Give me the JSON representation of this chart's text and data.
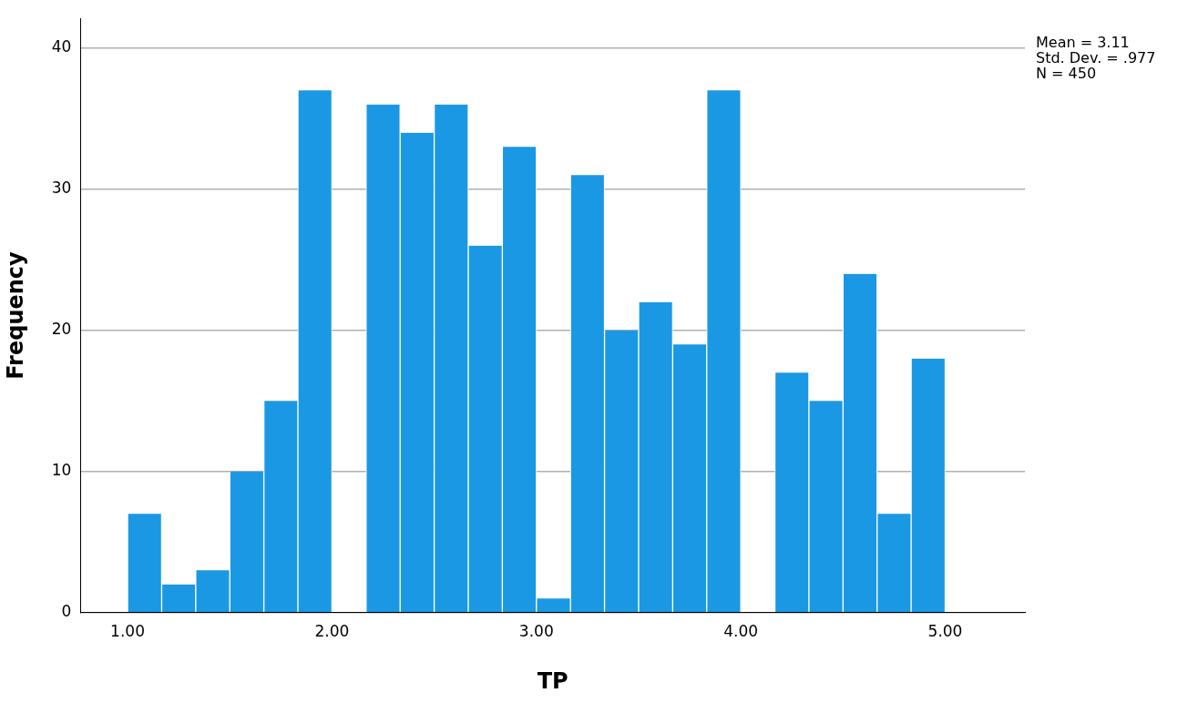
{
  "chart_data": {
    "type": "histogram",
    "xlabel": "TP",
    "ylabel": "Frequency",
    "bins": [
      1,
      1.1667,
      1.3333,
      1.5,
      1.6667,
      1.8333,
      2,
      2.1667,
      2.3333,
      2.5,
      2.6667,
      2.8333,
      3,
      3.1667,
      3.3333,
      3.5,
      3.6667,
      3.8333,
      4,
      4.1667,
      4.3333,
      4.5,
      4.6667,
      4.8333,
      5
    ],
    "values": [
      7,
      2,
      3,
      10,
      15,
      37,
      0,
      36,
      34,
      36,
      26,
      33,
      1,
      31,
      20,
      22,
      19,
      37,
      0,
      17,
      15,
      24,
      7,
      18
    ],
    "color": "#1b98e3",
    "xlim": [
      0.77,
      5.39
    ],
    "xticks": [
      {
        "value": 1,
        "label": "1.00"
      },
      {
        "value": 2,
        "label": "2.00"
      },
      {
        "value": 3,
        "label": "3.00"
      },
      {
        "value": 4,
        "label": "4.00"
      },
      {
        "value": 5,
        "label": "5.00"
      }
    ],
    "ylim": [
      0,
      42.1
    ],
    "yticks": [
      0,
      10,
      20,
      30,
      40
    ],
    "grid": "y",
    "legend": false,
    "annotations": [
      "Mean = 3.11",
      "Std. Dev. = .977",
      "N = 450"
    ]
  }
}
